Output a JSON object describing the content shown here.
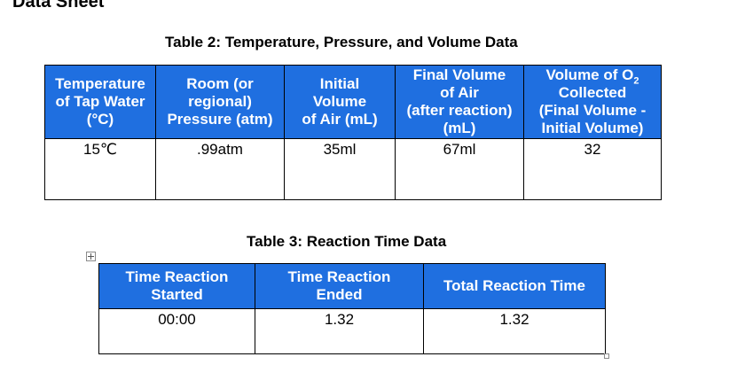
{
  "heading": "Data Sheet",
  "table2": {
    "caption": "Table 2: Temperature, Pressure, and Volume Data",
    "headers": [
      [
        "Temperature",
        "of Tap Water",
        "(°C)"
      ],
      [
        "Room (or",
        "regional)",
        "Pressure (atm)"
      ],
      [
        "Initial",
        "Volume",
        "of Air (mL)"
      ],
      [
        "Final Volume",
        "of Air",
        "(after reaction)",
        "(mL)"
      ],
      [
        "Volume of O",
        "Collected",
        "(Final Volume -",
        "Initial Volume)"
      ]
    ],
    "o2_subscript": "2",
    "rows": [
      [
        "15℃",
        ".99atm",
        "35ml",
        "67ml",
        "32"
      ]
    ]
  },
  "table3": {
    "caption": "Table 3: Reaction Time Data",
    "headers": [
      [
        "Time Reaction",
        "Started"
      ],
      [
        "Time Reaction",
        "Ended"
      ],
      [
        "Total Reaction Time"
      ]
    ],
    "rows": [
      [
        "00:00",
        "1.32",
        "1.32"
      ]
    ]
  },
  "colors": {
    "header_fill": "#1f6fe0",
    "header_text": "#ffffff",
    "border": "#000000"
  },
  "icons": {
    "table_move_handle": "move-cross-icon",
    "table_resize_handle": "resize-square-icon"
  }
}
